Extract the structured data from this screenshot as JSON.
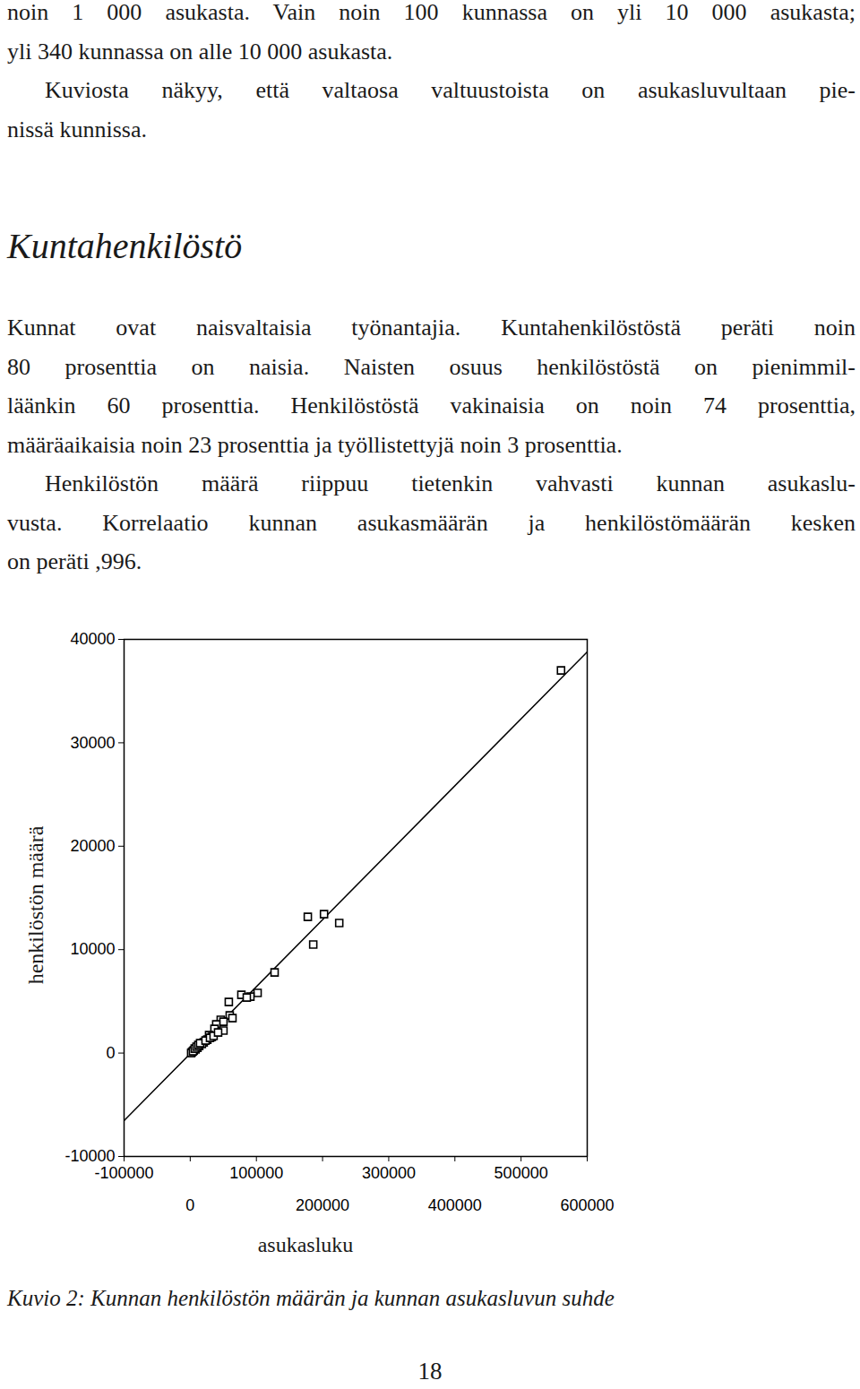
{
  "text_before": [
    [
      "noin 1 000 asukasta. Vain noin 100 kunnassa on yli 10 000 asukasta;",
      "yli 340 kunnassa on alle 10 000 asukasta."
    ],
    [
      "Kuviosta näkyy, että valtaosa valtuustoista on asukasluvultaan pie-",
      "nissä kunnissa."
    ]
  ],
  "heading": "Kuntahenkilöstö",
  "text_after": [
    [
      "Kunnat ovat naisvaltaisia työnantajia. Kuntahenkilöstöstä peräti noin",
      "80 prosenttia on naisia. Naisten osuus henkilöstöstä on pienimmil-",
      "läänkin 60 prosenttia. Henkilöstöstä vakinaisia on noin 74 prosenttia,",
      "määräaikaisia noin 23 prosenttia ja työllistettyjä noin 3 prosenttia."
    ],
    [
      "Henkilöstön määrä riippuu tietenkin vahvasti kunnan asukaslu-",
      "vusta. Korrelaatio kunnan asukasmäärän ja henkilöstömäärän kesken",
      "on peräti ,996."
    ]
  ],
  "caption": "Kuvio 2: Kunnan henkilöstön määrän ja kunnan asukasluvun suhde",
  "page_number": 18,
  "chart_data": {
    "type": "scatter",
    "xlabel": "asukasluku",
    "ylabel": "henkilöstön määrä",
    "marker": "square",
    "color": "#000000",
    "x": [
      560400,
      177700,
      202200,
      225200,
      185900,
      127500,
      101800,
      77300,
      90900,
      85500,
      58300,
      59700,
      63800,
      46100,
      50200,
      39300,
      50200,
      36600,
      28500,
      32600,
      25800,
      20400,
      17600,
      13600,
      10900,
      8100,
      5400,
      2700,
      1400,
      4100,
      6800,
      9500,
      12200,
      14900,
      23100,
      29900,
      35300,
      42100
    ],
    "y": [
      37000,
      13170,
      13430,
      12570,
      10490,
      7800,
      5810,
      5630,
      5460,
      5370,
      4940,
      3640,
      3380,
      3210,
      3030,
      2770,
      2170,
      2340,
      1730,
      1560,
      1300,
      1040,
      870,
      690,
      520,
      350,
      260,
      90,
      0,
      170,
      430,
      610,
      780,
      950,
      1210,
      1470,
      1650,
      1990
    ],
    "fit_line": {
      "x": [
        -100000,
        600000
      ],
      "y": [
        -6530,
        38790
      ]
    },
    "xlim": [
      -100000,
      600000
    ],
    "ylim": [
      -10000,
      40000
    ],
    "xticks": [
      -100000,
      0,
      100000,
      200000,
      300000,
      400000,
      500000,
      600000
    ],
    "yticks": [
      -10000,
      0,
      10000,
      20000,
      30000,
      40000
    ]
  }
}
